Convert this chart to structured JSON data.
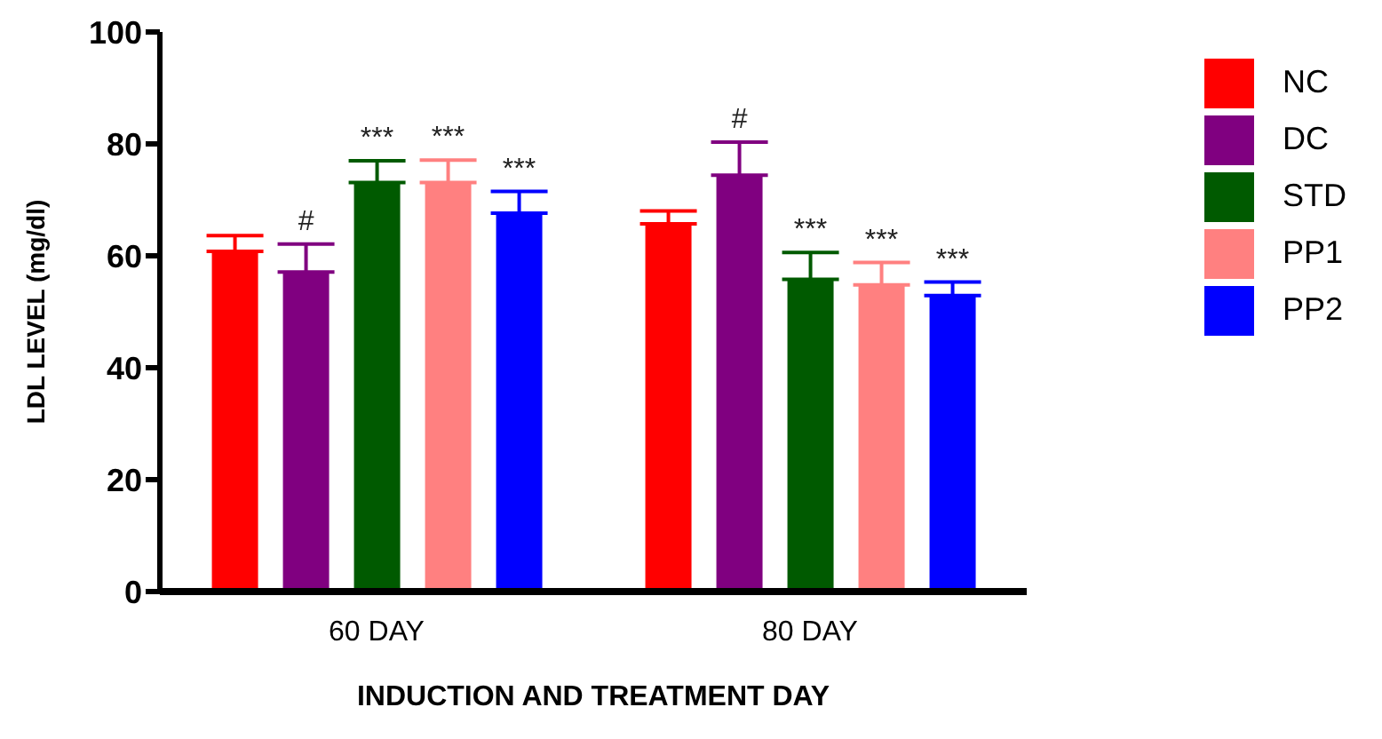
{
  "chart_data": {
    "type": "bar",
    "xlabel": "INDUCTION AND TREATMENT DAY",
    "ylabel": "LDL LEVEL (mg/dl)",
    "categories": [
      "60 DAY",
      "80 DAY"
    ],
    "series": [
      {
        "name": "NC",
        "color": "#ff0000",
        "values": [
          60.8,
          65.7
        ],
        "errors": [
          2.8,
          2.3
        ]
      },
      {
        "name": "DC",
        "color": "#800080",
        "values": [
          57.1,
          74.4
        ],
        "errors": [
          5,
          5.9
        ],
        "value_labels": [
          "#",
          "#"
        ]
      },
      {
        "name": "STD",
        "color": "#005a00",
        "values": [
          73.1,
          55.8
        ],
        "errors": [
          3.9,
          4.8
        ],
        "value_labels": [
          "***",
          "***"
        ]
      },
      {
        "name": "PP1",
        "color": "#ff8080",
        "values": [
          73.1,
          54.8
        ],
        "errors": [
          4,
          4
        ],
        "value_labels": [
          "***",
          "***"
        ]
      },
      {
        "name": "PP2",
        "color": "#0000ff",
        "values": [
          67.6,
          52.9
        ],
        "errors": [
          3.9,
          2.4
        ],
        "value_labels": [
          "***",
          "***"
        ]
      }
    ],
    "ylim": [
      0,
      100
    ],
    "yticks": [
      0,
      20,
      40,
      60,
      80,
      100
    ],
    "grid": false,
    "legend": "right"
  }
}
